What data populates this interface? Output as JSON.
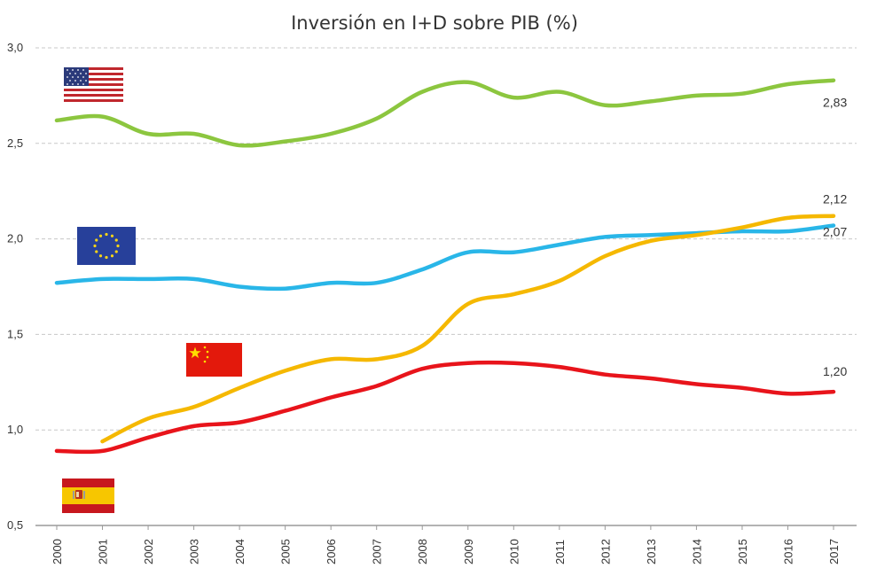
{
  "chart_data": {
    "type": "line",
    "title": "Inversión en I+D sobre PIB (%)",
    "xlabel": "",
    "ylabel": "",
    "x": [
      2000,
      2001,
      2002,
      2003,
      2004,
      2005,
      2006,
      2007,
      2008,
      2009,
      2010,
      2011,
      2012,
      2013,
      2014,
      2015,
      2016,
      2017
    ],
    "x_tick_labels": [
      "2000",
      "2001",
      "2002",
      "2003",
      "2004",
      "2005",
      "2006",
      "2007",
      "2008",
      "2009",
      "2010",
      "2011",
      "2012",
      "2013",
      "2014",
      "2015",
      "2016",
      "2017"
    ],
    "ylim": [
      0.5,
      3.0
    ],
    "y_ticks": [
      0.5,
      1.0,
      1.5,
      2.0,
      2.5,
      3.0
    ],
    "y_tick_labels": [
      "0,5",
      "1,0",
      "1,5",
      "2,0",
      "2,5",
      "3,0"
    ],
    "grid": true,
    "legend": "flags",
    "series": [
      {
        "key": "usa",
        "color": "#8cc63f",
        "flag": "usa-flag",
        "values": [
          2.62,
          2.64,
          2.55,
          2.55,
          2.49,
          2.51,
          2.55,
          2.63,
          2.77,
          2.82,
          2.74,
          2.77,
          2.7,
          2.72,
          2.75,
          2.76,
          2.81,
          2.83
        ],
        "end_label": "2,83"
      },
      {
        "key": "eu",
        "color": "#29b6e8",
        "flag": "eu-flag",
        "values": [
          1.77,
          1.79,
          1.79,
          1.79,
          1.75,
          1.74,
          1.77,
          1.77,
          1.84,
          1.93,
          1.93,
          1.97,
          2.01,
          2.02,
          2.03,
          2.04,
          2.04,
          2.07
        ],
        "end_label": "2,07"
      },
      {
        "key": "china",
        "color": "#f5b800",
        "flag": "china-flag",
        "x_start": 2001,
        "values": [
          null,
          0.94,
          1.06,
          1.12,
          1.22,
          1.31,
          1.37,
          1.37,
          1.44,
          1.66,
          1.71,
          1.78,
          1.91,
          1.99,
          2.02,
          2.06,
          2.11,
          2.12
        ],
        "end_label": "2,12"
      },
      {
        "key": "spain",
        "color": "#e8141b",
        "flag": "spain-flag",
        "values": [
          0.89,
          0.89,
          0.96,
          1.02,
          1.04,
          1.1,
          1.17,
          1.23,
          1.32,
          1.35,
          1.35,
          1.33,
          1.29,
          1.27,
          1.24,
          1.22,
          1.19,
          1.2
        ],
        "end_label": "1,20"
      }
    ]
  }
}
